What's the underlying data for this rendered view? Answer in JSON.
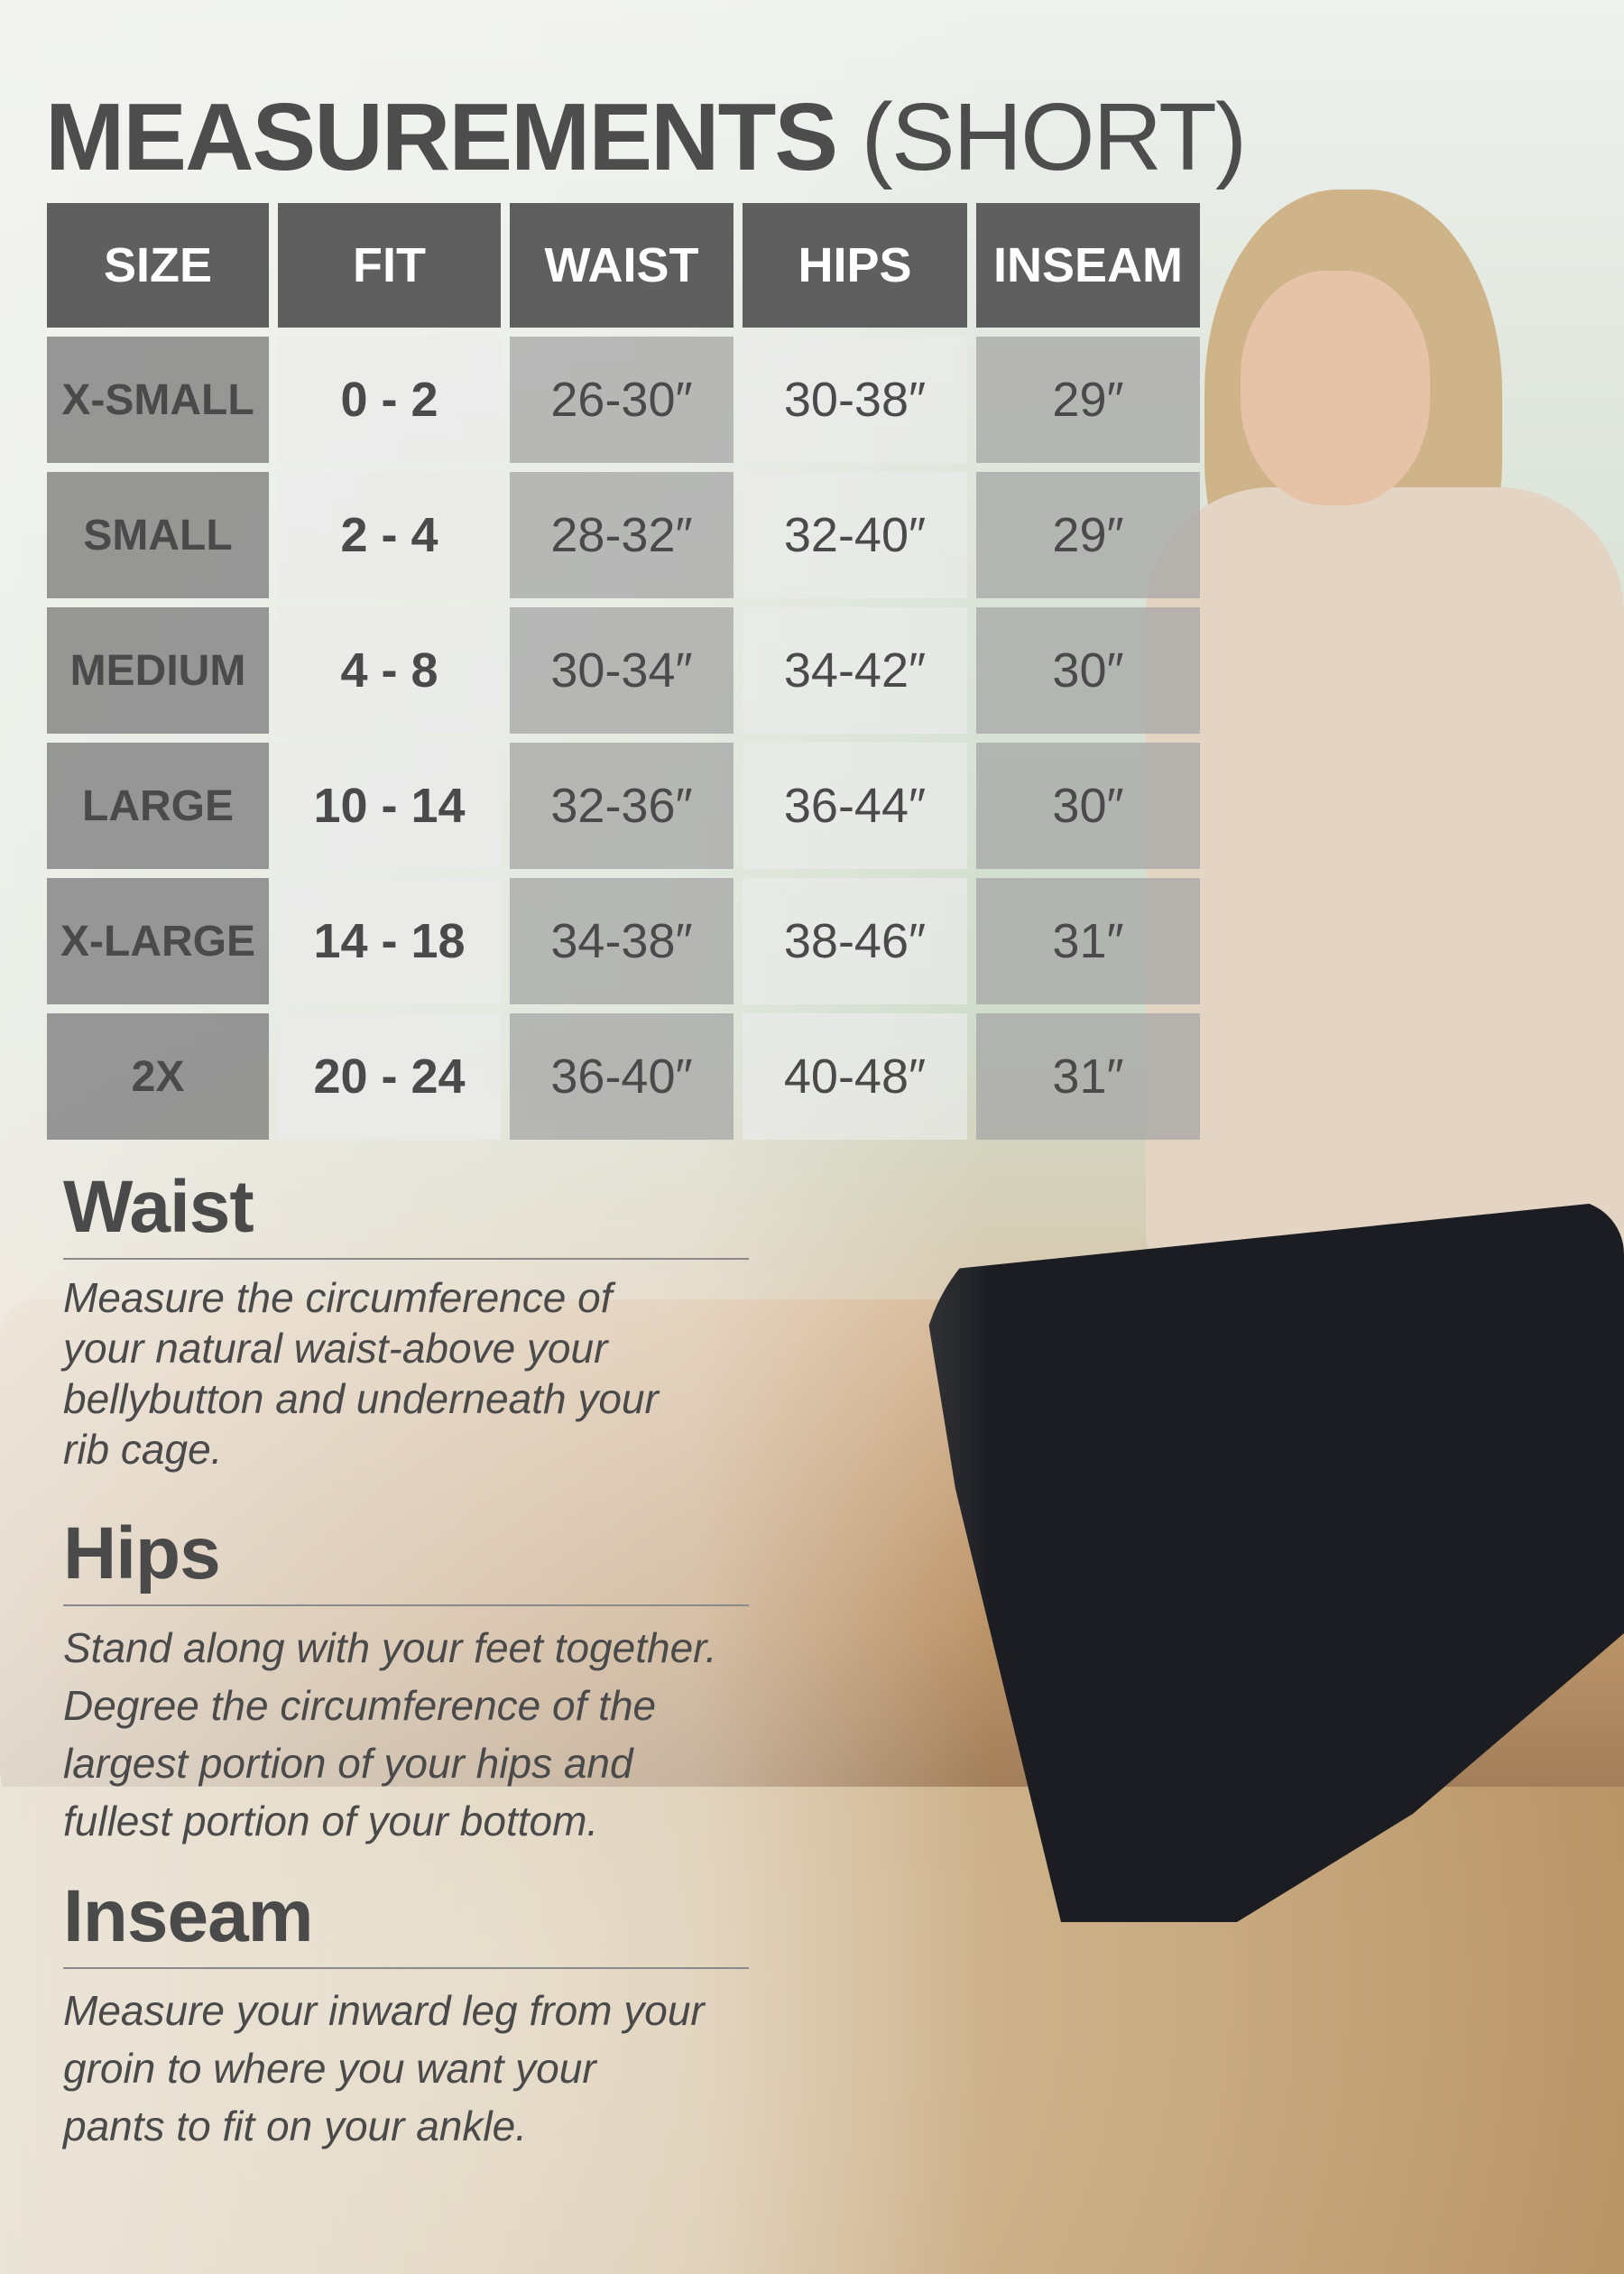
{
  "title": {
    "main": "MEASUREMENTS",
    "sub": "(SHORT)"
  },
  "table": {
    "headers": [
      "SIZE",
      "FIT",
      "WAIST",
      "HIPS",
      "INSEAM"
    ],
    "rows": [
      [
        "X-SMALL",
        "0 - 2",
        "26-30″",
        "30-38″",
        "29″"
      ],
      [
        "SMALL",
        "2 - 4",
        "28-32″",
        "32-40″",
        "29″"
      ],
      [
        "MEDIUM",
        "4 - 8",
        "30-34″",
        "34-42″",
        "30″"
      ],
      [
        "LARGE",
        "10 - 14",
        "32-36″",
        "36-44″",
        "30″"
      ],
      [
        "X-LARGE",
        "14 - 18",
        "34-38″",
        "38-46″",
        "31″"
      ],
      [
        "2X",
        "20 - 24",
        "36-40″",
        "40-48″",
        "31″"
      ]
    ]
  },
  "sections": [
    {
      "heading": "Waist",
      "lines": [
        "Measure the circumference of",
        "your natural waist-above your",
        "bellybutton and underneath your",
        "rib cage."
      ]
    },
    {
      "heading": "Hips",
      "lines": [
        "Stand along with your feet together.",
        "Degree the circumference of the",
        "largest portion of your hips and",
        "fullest portion of your bottom."
      ]
    },
    {
      "heading": "Inseam",
      "lines": [
        "Measure your inward leg from your",
        "groin to where you want your",
        "pants to fit on your ankle."
      ]
    }
  ],
  "colors": {
    "header_bg": "#5f5f5f",
    "text": "#4a4a4a"
  }
}
